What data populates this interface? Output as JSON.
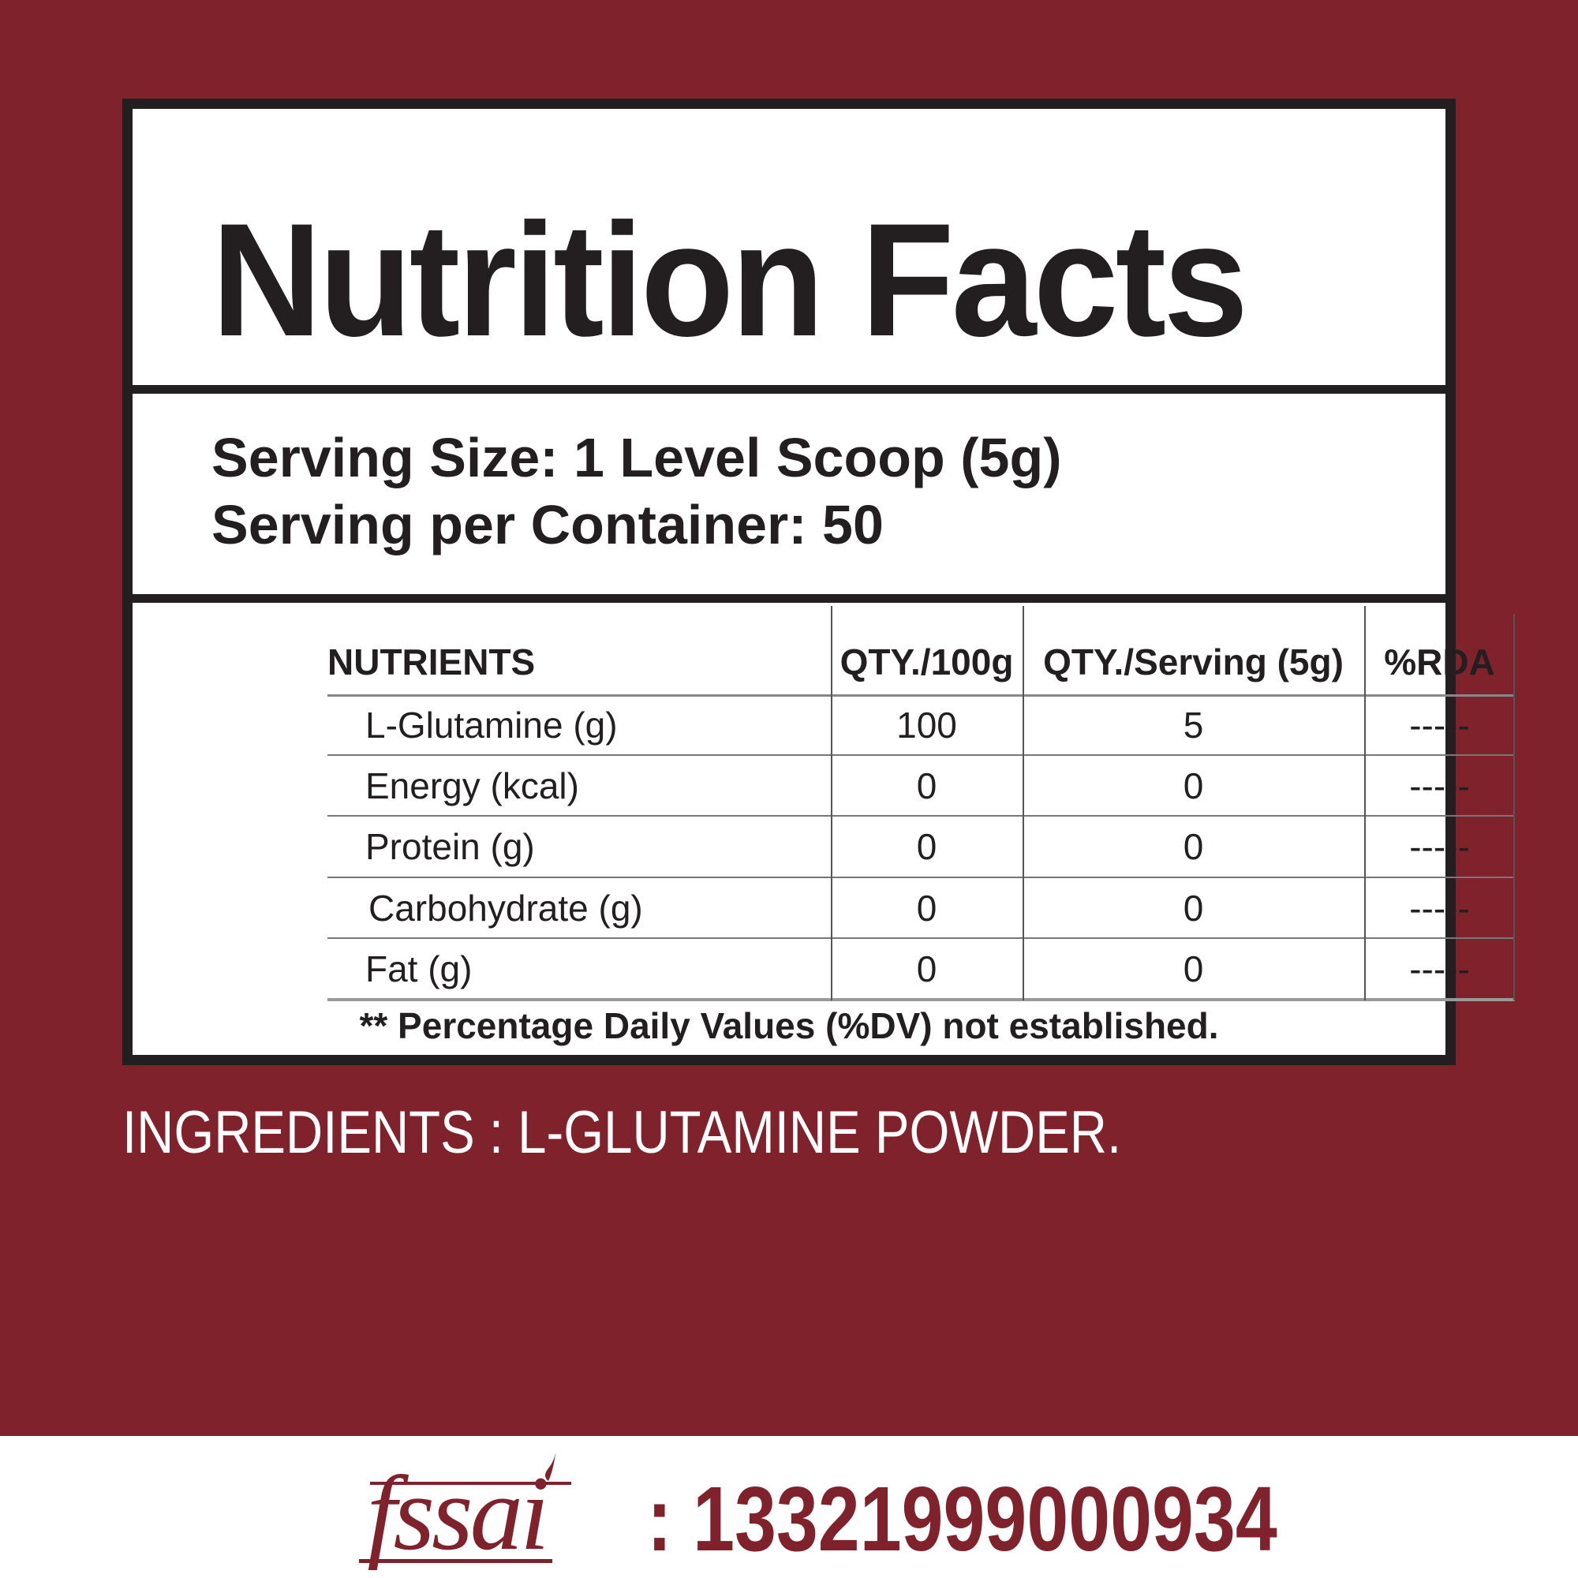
{
  "title": "Nutrition Facts",
  "serving": {
    "size": "Serving Size: 1 Level Scoop (5g)",
    "per_container": "Serving per Container: 50"
  },
  "table": {
    "headers": [
      "NUTRIENTS",
      "QTY./100g",
      "QTY./Serving (5g)",
      "%RDA"
    ],
    "rows": [
      [
        "L-Glutamine (g)",
        "100",
        "5",
        "-----"
      ],
      [
        "Energy (kcal)",
        "0",
        "0",
        "-----"
      ],
      [
        "Protein (g)",
        "0",
        "0",
        "-----"
      ],
      [
        "Carbohydrate (g)",
        "0",
        "0",
        "-----"
      ],
      [
        "Fat (g)",
        "0",
        "0",
        "-----"
      ]
    ]
  },
  "footnote": "** Percentage Daily Values (%DV) not established.",
  "ingredients": "INGREDIENTS :  L-GLUTAMINE POWDER.",
  "fssai": {
    "logo_text": "fssai",
    "license": ": 13321999000934"
  },
  "colors": {
    "background": "#80222b",
    "ink": "#231f20",
    "panel": "#ffffff"
  }
}
